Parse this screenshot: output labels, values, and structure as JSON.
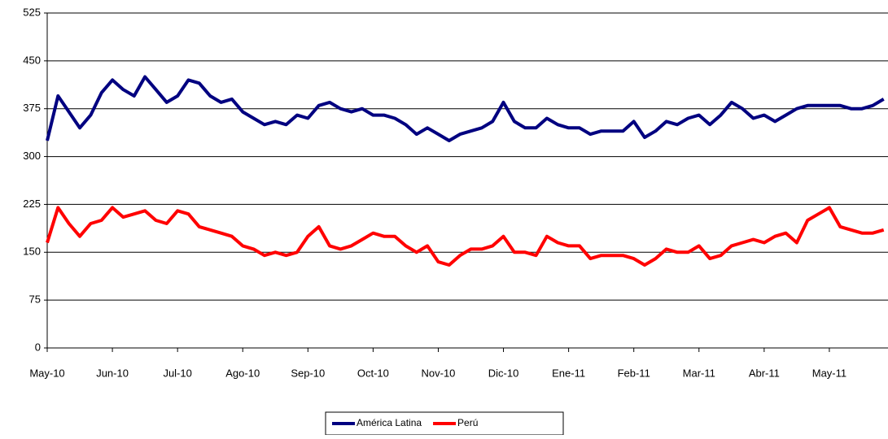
{
  "chart_data": {
    "type": "line",
    "categories": [
      "May-10",
      null,
      null,
      null,
      null,
      null,
      "Jun-10",
      null,
      null,
      null,
      null,
      null,
      "Jul-10",
      null,
      null,
      null,
      null,
      null,
      "Ago-10",
      null,
      null,
      null,
      null,
      null,
      "Sep-10",
      null,
      null,
      null,
      null,
      null,
      "Oct-10",
      null,
      null,
      null,
      null,
      null,
      "Nov-10",
      null,
      null,
      null,
      null,
      null,
      "Dic-10",
      null,
      null,
      null,
      null,
      null,
      "Ene-11",
      null,
      null,
      null,
      null,
      null,
      "Feb-11",
      null,
      null,
      null,
      null,
      null,
      "Mar-11",
      null,
      null,
      null,
      null,
      null,
      "Abr-11",
      null,
      null,
      null,
      null,
      null,
      "May-11",
      null,
      null,
      null,
      null,
      null
    ],
    "series": [
      {
        "name": "América Latina",
        "color": "#000080",
        "values": [
          325,
          395,
          370,
          345,
          365,
          400,
          420,
          405,
          395,
          425,
          405,
          385,
          395,
          420,
          415,
          395,
          385,
          390,
          370,
          360,
          350,
          355,
          350,
          365,
          360,
          380,
          385,
          375,
          370,
          375,
          365,
          365,
          360,
          350,
          335,
          345,
          335,
          325,
          335,
          340,
          345,
          355,
          385,
          355,
          345,
          345,
          360,
          350,
          345,
          345,
          335,
          340,
          340,
          340,
          355,
          330,
          340,
          355,
          350,
          360,
          365,
          350,
          365,
          385,
          375,
          360,
          365,
          355,
          365,
          375,
          380,
          380,
          380,
          380,
          375,
          375,
          380,
          390
        ]
      },
      {
        "name": "Perú",
        "color": "#ff0000",
        "values": [
          165,
          220,
          195,
          175,
          195,
          200,
          220,
          205,
          210,
          215,
          200,
          195,
          215,
          210,
          190,
          185,
          180,
          175,
          160,
          155,
          145,
          150,
          145,
          150,
          175,
          190,
          160,
          155,
          160,
          170,
          180,
          175,
          175,
          160,
          150,
          160,
          135,
          130,
          145,
          155,
          155,
          160,
          175,
          150,
          150,
          145,
          175,
          165,
          160,
          160,
          140,
          145,
          145,
          145,
          140,
          130,
          140,
          155,
          150,
          150,
          160,
          140,
          145,
          160,
          165,
          170,
          165,
          175,
          180,
          165,
          200,
          210,
          220,
          190,
          185,
          180,
          180,
          185
        ]
      }
    ],
    "ylim": [
      0,
      525
    ],
    "yticks": [
      0,
      75,
      150,
      225,
      300,
      375,
      450,
      525
    ],
    "grid": true,
    "legend": "bottom"
  }
}
